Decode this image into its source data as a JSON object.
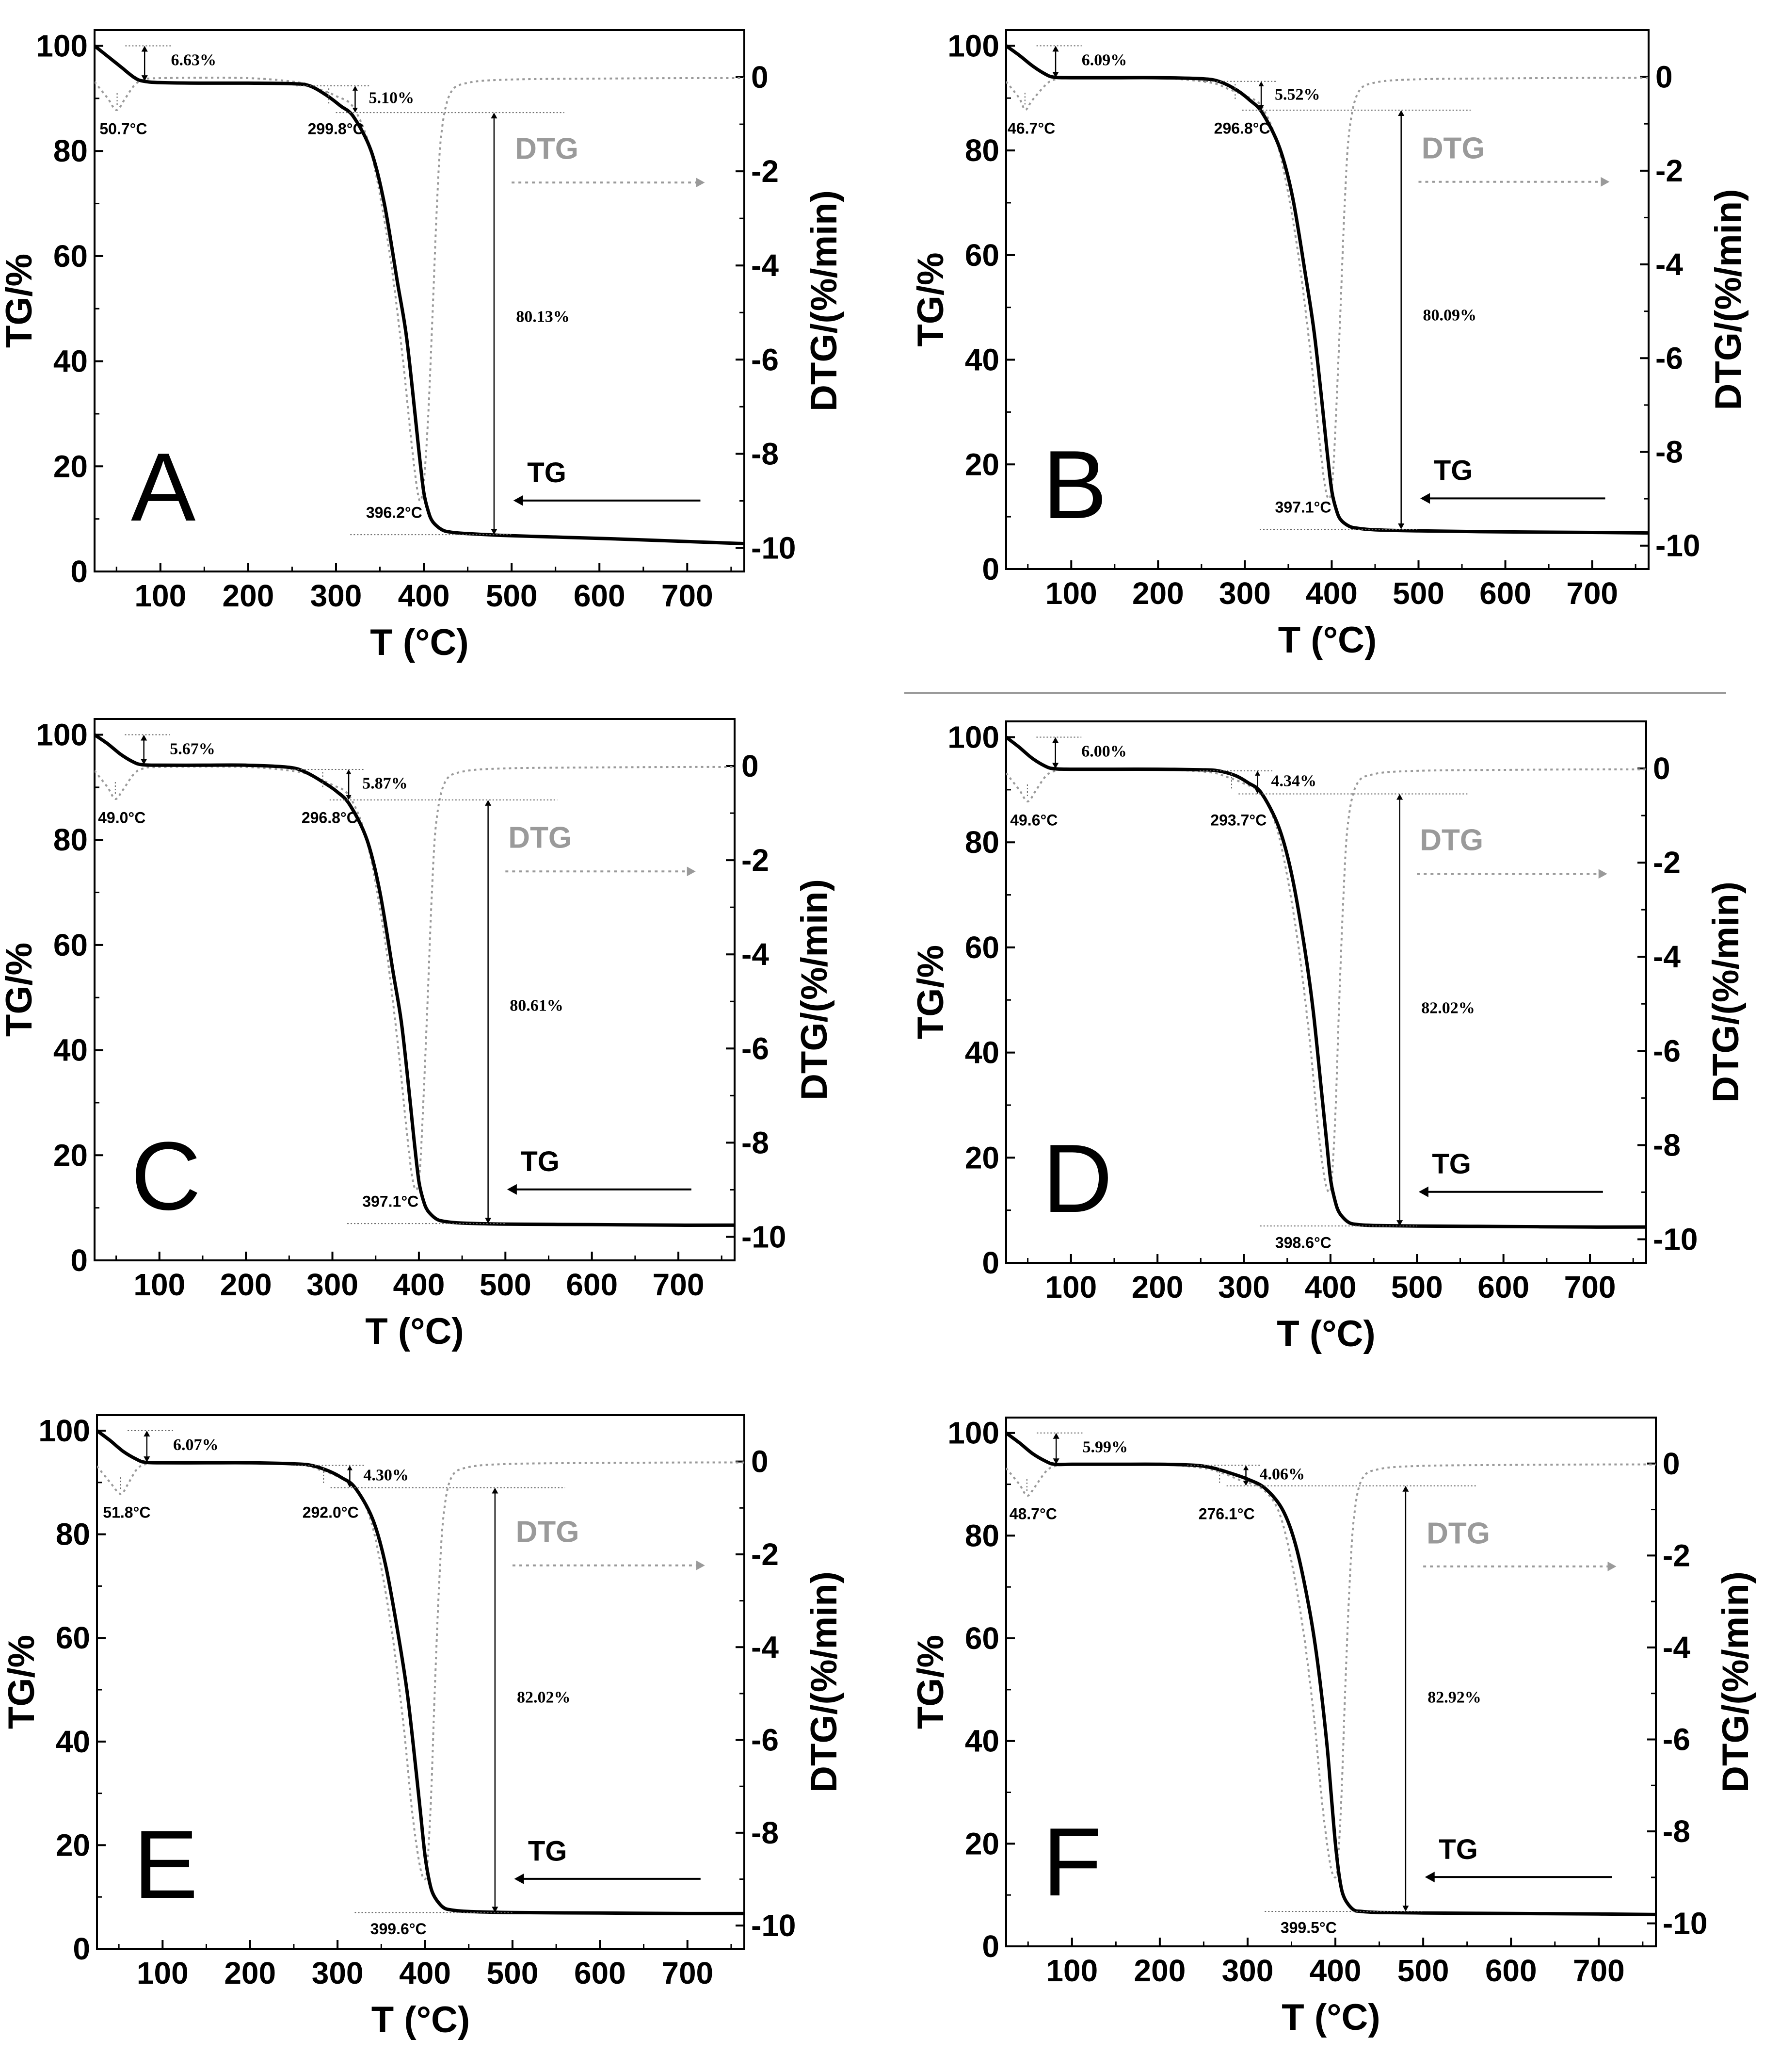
{
  "figure": {
    "separator_color": "#9a9a9a",
    "tg_color": "#000000",
    "dtg_color": "#9a9a9a"
  },
  "chart_data": [
    {
      "type": "line",
      "panel": "A",
      "xlabel": "T (°C)",
      "ylabel_left": "TG/%",
      "ylabel_right": "DTG/(%/min)",
      "xlim": [
        25,
        765
      ],
      "ylim_left": [
        0,
        103
      ],
      "ylim_right": [
        -10.5,
        1
      ],
      "xticks": [
        100,
        200,
        300,
        400,
        500,
        600,
        700
      ],
      "yticks_left": [
        0,
        20,
        40,
        60,
        80,
        100
      ],
      "yticks_right": [
        0,
        -2,
        -4,
        -6,
        -8,
        -10
      ],
      "legend": [
        "TG",
        "DTG"
      ],
      "tg": {
        "x": [
          25,
          40,
          55,
          70,
          80,
          100,
          150,
          200,
          250,
          270,
          290,
          305,
          320,
          340,
          355,
          370,
          380,
          390,
          395,
          400,
          405,
          410,
          420,
          430,
          450,
          500,
          600,
          700,
          765
        ],
        "y": [
          100,
          98,
          96,
          94,
          93.3,
          93,
          92.9,
          92.9,
          92.8,
          92.4,
          90.5,
          88.6,
          86.5,
          80,
          70,
          55,
          45,
          30,
          22,
          15,
          11.5,
          9.5,
          8,
          7.5,
          7.2,
          6.8,
          6.3,
          5.7,
          5.3
        ]
      },
      "dtg": {
        "x": [
          25,
          40,
          50,
          60,
          70,
          80,
          100,
          200,
          260,
          280,
          300,
          320,
          340,
          360,
          375,
          385,
          392,
          396,
          400,
          405,
          410,
          415,
          420,
          430,
          450,
          500,
          600,
          700,
          765
        ],
        "y": [
          -0.1,
          -0.45,
          -0.7,
          -0.45,
          -0.18,
          -0.06,
          -0.02,
          -0.02,
          -0.12,
          -0.25,
          -0.4,
          -0.65,
          -1.6,
          -3.6,
          -5.8,
          -7.6,
          -8.7,
          -9.0,
          -8.6,
          -7.2,
          -5.0,
          -2.7,
          -1.2,
          -0.35,
          -0.12,
          -0.05,
          -0.03,
          -0.02,
          -0.02
        ]
      },
      "annotations": {
        "step1_loss": "6.63%",
        "step2_loss": "5.10%",
        "step3_loss": "80.13%",
        "peak1": "50.7°C",
        "onset2": "299.8°C",
        "peak3": "396.2°C",
        "step1_top": 100,
        "step1_bottom": 93.3,
        "step2_top": 92.4,
        "step2_bottom": 87.3,
        "step3_top": 87.3,
        "step3_bottom": 7.0,
        "peak1_x": 50.7,
        "onset2_x": 299.8,
        "peak3_x": 396.2
      }
    },
    {
      "type": "line",
      "panel": "B",
      "xlabel": "T (°C)",
      "ylabel_left": "TG/%",
      "ylabel_right": "DTG/(%/min)",
      "xlim": [
        25,
        765
      ],
      "ylim_left": [
        0,
        103
      ],
      "ylim_right": [
        -10.5,
        1
      ],
      "xticks": [
        100,
        200,
        300,
        400,
        500,
        600,
        700
      ],
      "yticks_left": [
        0,
        20,
        40,
        60,
        80,
        100
      ],
      "yticks_right": [
        0,
        -2,
        -4,
        -6,
        -8,
        -10
      ],
      "legend": [
        "TG",
        "DTG"
      ],
      "tg": {
        "x": [
          25,
          40,
          55,
          70,
          80,
          100,
          150,
          200,
          250,
          270,
          290,
          305,
          320,
          340,
          355,
          370,
          380,
          390,
          395,
          400,
          405,
          410,
          420,
          430,
          450,
          500,
          600,
          700,
          765
        ],
        "y": [
          100,
          98.2,
          96.2,
          94.6,
          94,
          93.9,
          93.9,
          93.9,
          93.7,
          93.2,
          91.6,
          89.7,
          87.2,
          80.5,
          71,
          56,
          45,
          30,
          22,
          15,
          11.5,
          9.5,
          8.2,
          7.8,
          7.5,
          7.3,
          7.1,
          7.0,
          6.9
        ]
      },
      "dtg": {
        "x": [
          25,
          40,
          47,
          55,
          70,
          80,
          100,
          200,
          260,
          280,
          300,
          320,
          340,
          360,
          375,
          385,
          392,
          397,
          401,
          405,
          410,
          415,
          420,
          430,
          450,
          500,
          600,
          700,
          765
        ],
        "y": [
          -0.1,
          -0.45,
          -0.7,
          -0.5,
          -0.18,
          -0.06,
          -0.02,
          -0.02,
          -0.12,
          -0.25,
          -0.4,
          -0.65,
          -1.6,
          -3.6,
          -5.8,
          -7.6,
          -8.7,
          -9.0,
          -8.6,
          -7.2,
          -5.0,
          -2.7,
          -1.2,
          -0.35,
          -0.12,
          -0.05,
          -0.03,
          -0.02,
          -0.02
        ]
      },
      "annotations": {
        "step1_loss": "6.09%",
        "step2_loss": "5.52%",
        "step3_loss": "80.09%",
        "peak1": "46.7°C",
        "onset2": "296.8°C",
        "peak3": "397.1°C",
        "step1_top": 100,
        "step1_bottom": 93.9,
        "step2_top": 93.2,
        "step2_bottom": 87.7,
        "step3_top": 87.7,
        "step3_bottom": 7.6,
        "peak1_x": 46.7,
        "onset2_x": 296.8,
        "peak3_x": 397.1
      }
    },
    {
      "type": "line",
      "panel": "C",
      "xlabel": "T (°C)",
      "ylabel_left": "TG/%",
      "ylabel_right": "DTG/(%/min)",
      "xlim": [
        25,
        765
      ],
      "ylim_left": [
        0,
        103
      ],
      "ylim_right": [
        -10.5,
        1
      ],
      "xticks": [
        100,
        200,
        300,
        400,
        500,
        600,
        700
      ],
      "yticks_left": [
        0,
        20,
        40,
        60,
        80,
        100
      ],
      "yticks_right": [
        0,
        -2,
        -4,
        -6,
        -8,
        -10
      ],
      "legend": [
        "TG",
        "DTG"
      ],
      "tg": {
        "x": [
          25,
          40,
          55,
          70,
          80,
          100,
          150,
          200,
          250,
          270,
          290,
          305,
          320,
          340,
          355,
          370,
          380,
          390,
          395,
          400,
          405,
          410,
          420,
          430,
          450,
          500,
          600,
          700,
          765
        ],
        "y": [
          100,
          98.3,
          96.3,
          94.8,
          94.3,
          94.2,
          94.2,
          94.2,
          93.8,
          92.8,
          90.9,
          89.2,
          86.7,
          80,
          70,
          55,
          45,
          30,
          22,
          15,
          11.5,
          9.5,
          7.9,
          7.4,
          7.1,
          6.9,
          6.8,
          6.7,
          6.7
        ]
      },
      "dtg": {
        "x": [
          25,
          40,
          49,
          58,
          70,
          80,
          100,
          200,
          260,
          280,
          300,
          320,
          340,
          360,
          375,
          385,
          392,
          397,
          401,
          405,
          410,
          415,
          420,
          430,
          450,
          500,
          600,
          700,
          765
        ],
        "y": [
          -0.1,
          -0.45,
          -0.7,
          -0.5,
          -0.18,
          -0.06,
          -0.02,
          -0.02,
          -0.12,
          -0.25,
          -0.4,
          -0.65,
          -1.6,
          -3.6,
          -5.8,
          -7.6,
          -8.7,
          -9.0,
          -8.6,
          -7.2,
          -5.0,
          -2.7,
          -1.2,
          -0.35,
          -0.12,
          -0.05,
          -0.03,
          -0.02,
          -0.02
        ]
      },
      "annotations": {
        "step1_loss": "5.67%",
        "step2_loss": "5.87%",
        "step3_loss": "80.61%",
        "peak1": "49.0°C",
        "onset2": "296.8°C",
        "peak3": "397.1°C",
        "step1_top": 100,
        "step1_bottom": 94.3,
        "step2_top": 93.4,
        "step2_bottom": 87.6,
        "step3_top": 87.6,
        "step3_bottom": 7.0,
        "peak1_x": 49.0,
        "onset2_x": 296.8,
        "peak3_x": 397.1
      }
    },
    {
      "type": "line",
      "panel": "D",
      "xlabel": "T (°C)",
      "ylabel_left": "TG/%",
      "ylabel_right": "DTG/(%/min)",
      "xlim": [
        25,
        765
      ],
      "ylim_left": [
        0,
        103
      ],
      "ylim_right": [
        -10.5,
        1
      ],
      "xticks": [
        100,
        200,
        300,
        400,
        500,
        600,
        700
      ],
      "yticks_left": [
        0,
        20,
        40,
        60,
        80,
        100
      ],
      "yticks_right": [
        0,
        -2,
        -4,
        -6,
        -8,
        -10
      ],
      "legend": [
        "TG",
        "DTG"
      ],
      "tg": {
        "x": [
          25,
          40,
          55,
          70,
          80,
          100,
          150,
          200,
          250,
          270,
          290,
          305,
          320,
          340,
          355,
          370,
          380,
          390,
          395,
          400,
          405,
          410,
          420,
          430,
          450,
          500,
          600,
          700,
          765
        ],
        "y": [
          100,
          98.1,
          96,
          94.5,
          94,
          93.9,
          93.9,
          93.9,
          93.8,
          93.6,
          92.7,
          91.3,
          89.4,
          83,
          74,
          60,
          48,
          32,
          24,
          16,
          12,
          9.6,
          7.8,
          7.3,
          7.1,
          7.0,
          6.9,
          6.8,
          6.8
        ]
      },
      "dtg": {
        "x": [
          25,
          40,
          50,
          60,
          70,
          80,
          100,
          200,
          260,
          280,
          300,
          320,
          340,
          360,
          375,
          385,
          393,
          399,
          402,
          406,
          410,
          415,
          420,
          430,
          450,
          500,
          600,
          700,
          765
        ],
        "y": [
          -0.1,
          -0.45,
          -0.7,
          -0.45,
          -0.18,
          -0.06,
          -0.02,
          -0.02,
          -0.08,
          -0.18,
          -0.32,
          -0.55,
          -1.4,
          -3.4,
          -5.6,
          -7.5,
          -8.7,
          -9.0,
          -8.6,
          -7.2,
          -5.0,
          -2.7,
          -1.2,
          -0.35,
          -0.12,
          -0.05,
          -0.03,
          -0.02,
          -0.02
        ]
      },
      "annotations": {
        "step1_loss": "6.00%",
        "step2_loss": "4.34%",
        "step3_loss": "82.02%",
        "peak1": "49.6°C",
        "onset2": "293.7°C",
        "peak3": "398.6°C",
        "step1_top": 100,
        "step1_bottom": 94.0,
        "step2_top": 93.6,
        "step2_bottom": 89.2,
        "step3_top": 89.2,
        "step3_bottom": 7.0,
        "peak1_x": 49.6,
        "onset2_x": 293.7,
        "peak3_x": 398.6
      }
    },
    {
      "type": "line",
      "panel": "E",
      "xlabel": "T (°C)",
      "ylabel_left": "TG/%",
      "ylabel_right": "DTG/(%/min)",
      "xlim": [
        25,
        765
      ],
      "ylim_left": [
        0,
        103
      ],
      "ylim_right": [
        -10.5,
        1
      ],
      "xticks": [
        100,
        200,
        300,
        400,
        500,
        600,
        700
      ],
      "yticks_left": [
        0,
        20,
        40,
        60,
        80,
        100
      ],
      "yticks_right": [
        0,
        -2,
        -4,
        -6,
        -8,
        -10
      ],
      "legend": [
        "TG",
        "DTG"
      ],
      "tg": {
        "x": [
          25,
          40,
          55,
          70,
          80,
          100,
          150,
          200,
          250,
          270,
          290,
          305,
          320,
          340,
          355,
          370,
          380,
          390,
          395,
          400,
          405,
          410,
          420,
          430,
          450,
          500,
          600,
          700,
          765
        ],
        "y": [
          100,
          98.1,
          96,
          94.5,
          93.9,
          93.8,
          93.8,
          93.8,
          93.6,
          93.3,
          92.2,
          90.9,
          89,
          83,
          74,
          60,
          49,
          34,
          26,
          18,
          13,
          10.3,
          8.1,
          7.5,
          7.2,
          7.0,
          6.9,
          6.8,
          6.8
        ]
      },
      "dtg": {
        "x": [
          25,
          40,
          52,
          60,
          70,
          80,
          100,
          200,
          260,
          280,
          300,
          320,
          340,
          360,
          375,
          385,
          394,
          400,
          403,
          407,
          411,
          416,
          421,
          430,
          450,
          500,
          600,
          700,
          765
        ],
        "y": [
          -0.1,
          -0.45,
          -0.7,
          -0.5,
          -0.18,
          -0.06,
          -0.02,
          -0.02,
          -0.08,
          -0.18,
          -0.32,
          -0.55,
          -1.4,
          -3.4,
          -5.6,
          -7.5,
          -8.7,
          -9.0,
          -8.6,
          -7.2,
          -5.0,
          -2.7,
          -1.2,
          -0.35,
          -0.12,
          -0.05,
          -0.03,
          -0.02,
          -0.02
        ]
      },
      "annotations": {
        "step1_loss": "6.07%",
        "step2_loss": "4.30%",
        "step3_loss": "82.02%",
        "peak1": "51.8°C",
        "onset2": "292.0°C",
        "peak3": "399.6°C",
        "step1_top": 100,
        "step1_bottom": 93.9,
        "step2_top": 93.3,
        "step2_bottom": 89.0,
        "step3_top": 89.0,
        "step3_bottom": 7.0,
        "peak1_x": 51.8,
        "onset2_x": 292.0,
        "peak3_x": 399.6
      }
    },
    {
      "type": "line",
      "panel": "F",
      "xlabel": "T (°C)",
      "ylabel_left": "TG/%",
      "ylabel_right": "DTG/(%/min)",
      "xlim": [
        25,
        765
      ],
      "ylim_left": [
        0,
        103
      ],
      "ylim_right": [
        -10.5,
        1
      ],
      "xticks": [
        100,
        200,
        300,
        400,
        500,
        600,
        700
      ],
      "yticks_left": [
        0,
        20,
        40,
        60,
        80,
        100
      ],
      "yticks_right": [
        0,
        -2,
        -4,
        -6,
        -8,
        -10
      ],
      "legend": [
        "TG",
        "DTG"
      ],
      "tg": {
        "x": [
          25,
          40,
          55,
          70,
          80,
          100,
          150,
          200,
          240,
          260,
          280,
          300,
          320,
          340,
          355,
          370,
          380,
          390,
          395,
          400,
          405,
          410,
          420,
          430,
          450,
          500,
          600,
          700,
          765
        ],
        "y": [
          100,
          98.1,
          96,
          94.5,
          93.9,
          93.9,
          93.9,
          93.9,
          93.7,
          93.2,
          92.2,
          91,
          89.2,
          85,
          78,
          66,
          55,
          40,
          30,
          20,
          13,
          9.5,
          7.2,
          6.8,
          6.6,
          6.5,
          6.4,
          6.3,
          6.2
        ]
      },
      "dtg": {
        "x": [
          25,
          40,
          49,
          58,
          70,
          80,
          100,
          200,
          250,
          270,
          290,
          320,
          340,
          360,
          375,
          385,
          394,
          400,
          403,
          407,
          411,
          416,
          421,
          430,
          450,
          500,
          600,
          700,
          765
        ],
        "y": [
          -0.1,
          -0.45,
          -0.7,
          -0.5,
          -0.18,
          -0.06,
          -0.02,
          -0.02,
          -0.1,
          -0.2,
          -0.35,
          -0.6,
          -1.3,
          -3.2,
          -5.4,
          -7.4,
          -8.7,
          -9.0,
          -8.6,
          -7.2,
          -5.0,
          -2.7,
          -1.2,
          -0.35,
          -0.12,
          -0.05,
          -0.03,
          -0.02,
          -0.02
        ]
      },
      "annotations": {
        "step1_loss": "5.99%",
        "step2_loss": "4.06%",
        "step3_loss": "82.92%",
        "peak1": "48.7°C",
        "onset2": "276.1°C",
        "peak3": "399.5°C",
        "step1_top": 100,
        "step1_bottom": 93.9,
        "step2_top": 93.7,
        "step2_bottom": 89.7,
        "step3_top": 89.7,
        "step3_bottom": 6.8,
        "peak1_x": 48.7,
        "onset2_x": 276.1,
        "peak3_x": 399.5
      }
    }
  ]
}
